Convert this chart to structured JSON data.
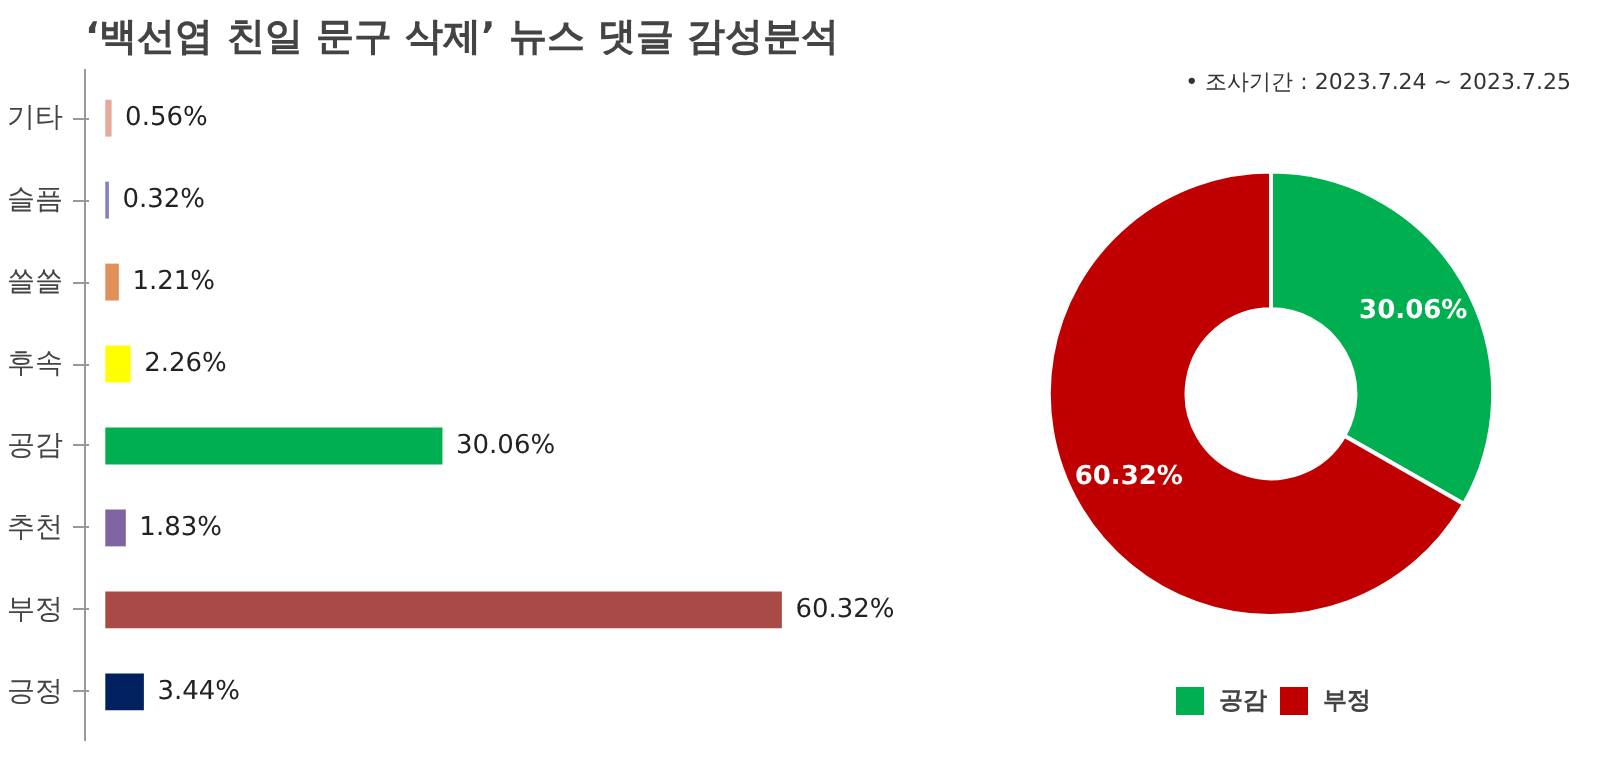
{
  "chart_data": [
    {
      "type": "bar",
      "orientation": "horizontal",
      "title": "‘백선엽 친일 문구 삭제’ 뉴스 댓글 감성분석",
      "categories": [
        "기타",
        "슬픔",
        "쓸쓸",
        "후속",
        "공감",
        "추천",
        "부정",
        "긍정"
      ],
      "values": [
        0.56,
        0.32,
        1.21,
        2.26,
        30.06,
        1.83,
        60.32,
        3.44
      ],
      "value_labels": [
        "0.56%",
        "0.32%",
        "1.21%",
        "2.26%",
        "30.06%",
        "1.83%",
        "60.32%",
        "3.44%"
      ],
      "colors": [
        "#e6a99a",
        "#8080c0",
        "#e0905a",
        "#ffff00",
        "#00b050",
        "#8064a2",
        "#a94a47",
        "#002060"
      ],
      "grid": false
    },
    {
      "type": "donut",
      "annotations": [
        "• 조사기간 : 2023.7.24 ~ 2023.7.25"
      ],
      "categories": [
        "공감",
        "부정"
      ],
      "values": [
        30.06,
        60.32
      ],
      "value_labels": [
        "30.06%",
        "60.32%"
      ],
      "colors": [
        "#00b050",
        "#c00000"
      ],
      "legend": "bottom"
    }
  ]
}
